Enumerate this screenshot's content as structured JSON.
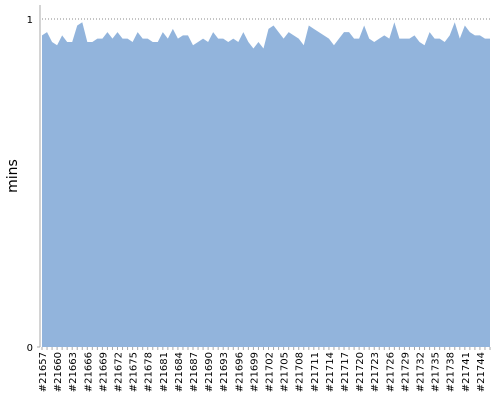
{
  "chart_data": {
    "type": "area",
    "y_label": "mins",
    "categories": [
      "#21657",
      null,
      null,
      "#21660",
      null,
      null,
      "#21663",
      null,
      null,
      "#21666",
      null,
      null,
      "#21669",
      null,
      null,
      "#21672",
      null,
      null,
      "#21675",
      null,
      null,
      "#21678",
      null,
      null,
      "#21681",
      null,
      null,
      "#21684",
      null,
      null,
      "#21687",
      null,
      null,
      "#21690",
      null,
      null,
      "#21693",
      null,
      null,
      "#21696",
      null,
      null,
      "#21699",
      null,
      null,
      "#21702",
      null,
      null,
      "#21705",
      null,
      null,
      "#21708",
      null,
      null,
      "#21711",
      null,
      null,
      "#21714",
      null,
      null,
      "#21717",
      null,
      null,
      "#21720",
      null,
      null,
      "#21723",
      null,
      null,
      "#21726",
      null,
      null,
      "#21729",
      null,
      null,
      "#21732",
      null,
      null,
      "#21735",
      null,
      null,
      "#21738",
      null,
      null,
      "#21741",
      null,
      null,
      "#21744",
      null,
      null
    ],
    "values": [
      0.95,
      0.96,
      0.93,
      0.92,
      0.95,
      0.93,
      0.93,
      0.98,
      0.99,
      0.93,
      0.93,
      0.94,
      0.94,
      0.96,
      0.94,
      0.96,
      0.94,
      0.94,
      0.93,
      0.96,
      0.94,
      0.94,
      0.93,
      0.93,
      0.96,
      0.94,
      0.97,
      0.94,
      0.95,
      0.95,
      0.92,
      0.93,
      0.94,
      0.93,
      0.96,
      0.94,
      0.94,
      0.93,
      0.94,
      0.93,
      0.96,
      0.93,
      0.91,
      0.93,
      0.91,
      0.97,
      0.98,
      0.96,
      0.94,
      0.96,
      0.95,
      0.94,
      0.92,
      0.98,
      0.97,
      0.96,
      0.95,
      0.94,
      0.92,
      0.94,
      0.96,
      0.96,
      0.94,
      0.94,
      0.98,
      0.94,
      0.93,
      0.94,
      0.95,
      0.94,
      0.99,
      0.94,
      0.94,
      0.94,
      0.95,
      0.93,
      0.92,
      0.96,
      0.94,
      0.94,
      0.93,
      0.95,
      0.99,
      0.94,
      0.98,
      0.96,
      0.95,
      0.95,
      0.94,
      0.94
    ],
    "color": "#92b4dc",
    "ylim": [
      0,
      1
    ],
    "yticks": [
      0,
      1
    ],
    "grid": true
  }
}
